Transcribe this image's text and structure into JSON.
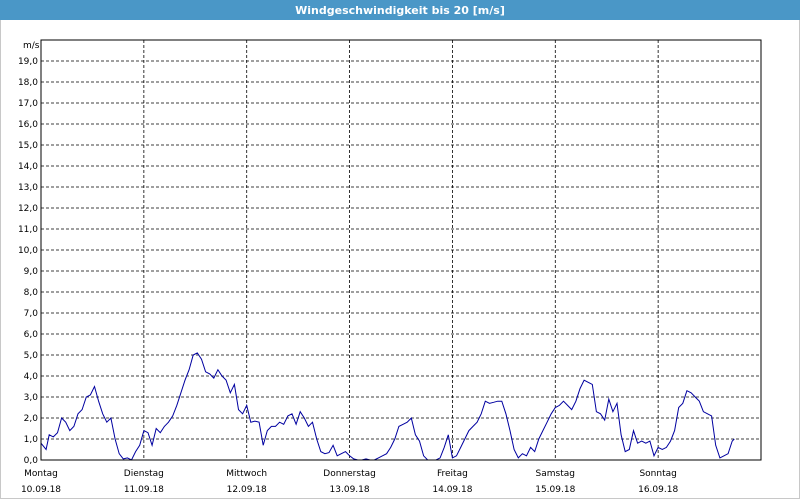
{
  "window": {
    "title": "Windgeschwindigkeit bis 20 [m/s]"
  },
  "chart_data": {
    "type": "line",
    "title": "Windgeschwindigkeit bis 20 [m/s]",
    "ylabel": "m/s",
    "xlabel": "",
    "ylim": [
      0,
      20
    ],
    "xlim": [
      0,
      7
    ],
    "grid": true,
    "line_color": "#0000a0",
    "y_ticks": [
      "0,0",
      "1,0",
      "2,0",
      "3,0",
      "4,0",
      "5,0",
      "6,0",
      "7,0",
      "8,0",
      "9,0",
      "10,0",
      "11,0",
      "12,0",
      "13,0",
      "14,0",
      "15,0",
      "16,0",
      "17,0",
      "18,0",
      "19,0"
    ],
    "x_ticks": [
      {
        "day": "Montag",
        "date": "10.09.18"
      },
      {
        "day": "Dienstag",
        "date": "11.09.18"
      },
      {
        "day": "Mittwoch",
        "date": "12.09.18"
      },
      {
        "day": "Donnerstag",
        "date": "13.09.18"
      },
      {
        "day": "Freitag",
        "date": "14.09.18"
      },
      {
        "day": "Samstag",
        "date": "15.09.18"
      },
      {
        "day": "Sonntag",
        "date": "16.09.18"
      }
    ],
    "series": [
      {
        "values": [
          [
            0.0,
            0.8
          ],
          [
            0.05,
            0.5
          ],
          [
            0.08,
            1.2
          ],
          [
            0.12,
            1.1
          ],
          [
            0.16,
            1.3
          ],
          [
            0.2,
            2.0
          ],
          [
            0.24,
            1.8
          ],
          [
            0.28,
            1.4
          ],
          [
            0.32,
            1.6
          ],
          [
            0.36,
            2.2
          ],
          [
            0.4,
            2.4
          ],
          [
            0.44,
            3.0
          ],
          [
            0.48,
            3.1
          ],
          [
            0.52,
            3.5
          ],
          [
            0.56,
            2.8
          ],
          [
            0.6,
            2.2
          ],
          [
            0.64,
            1.8
          ],
          [
            0.68,
            2.0
          ],
          [
            0.72,
            1.0
          ],
          [
            0.76,
            0.3
          ],
          [
            0.8,
            0.05
          ],
          [
            0.84,
            0.1
          ],
          [
            0.88,
            0.0
          ],
          [
            0.92,
            0.4
          ],
          [
            0.96,
            0.7
          ],
          [
            1.0,
            1.4
          ],
          [
            1.04,
            1.3
          ],
          [
            1.08,
            0.7
          ],
          [
            1.12,
            1.5
          ],
          [
            1.16,
            1.3
          ],
          [
            1.2,
            1.6
          ],
          [
            1.24,
            1.8
          ],
          [
            1.28,
            2.1
          ],
          [
            1.32,
            2.6
          ],
          [
            1.36,
            3.2
          ],
          [
            1.4,
            3.8
          ],
          [
            1.44,
            4.3
          ],
          [
            1.48,
            5.0
          ],
          [
            1.52,
            5.1
          ],
          [
            1.56,
            4.8
          ],
          [
            1.6,
            4.2
          ],
          [
            1.64,
            4.1
          ],
          [
            1.68,
            3.9
          ],
          [
            1.72,
            4.3
          ],
          [
            1.76,
            4.0
          ],
          [
            1.8,
            3.8
          ],
          [
            1.84,
            3.2
          ],
          [
            1.88,
            3.6
          ],
          [
            1.92,
            2.4
          ],
          [
            1.96,
            2.2
          ],
          [
            2.0,
            2.6
          ],
          [
            2.04,
            1.8
          ],
          [
            2.08,
            1.85
          ],
          [
            2.12,
            1.8
          ],
          [
            2.16,
            0.7
          ],
          [
            2.2,
            1.4
          ],
          [
            2.24,
            1.6
          ],
          [
            2.28,
            1.6
          ],
          [
            2.32,
            1.8
          ],
          [
            2.36,
            1.7
          ],
          [
            2.4,
            2.1
          ],
          [
            2.44,
            2.2
          ],
          [
            2.48,
            1.7
          ],
          [
            2.52,
            2.3
          ],
          [
            2.56,
            2.0
          ],
          [
            2.6,
            1.6
          ],
          [
            2.64,
            1.8
          ],
          [
            2.68,
            1.0
          ],
          [
            2.72,
            0.4
          ],
          [
            2.76,
            0.3
          ],
          [
            2.8,
            0.35
          ],
          [
            2.84,
            0.7
          ],
          [
            2.88,
            0.2
          ],
          [
            2.92,
            0.3
          ],
          [
            2.96,
            0.4
          ],
          [
            3.0,
            0.2
          ],
          [
            3.04,
            0.05
          ],
          [
            3.08,
            0.0
          ],
          [
            3.12,
            0.0
          ],
          [
            3.16,
            0.05
          ],
          [
            3.2,
            0.0
          ],
          [
            3.24,
            0.0
          ],
          [
            3.28,
            0.1
          ],
          [
            3.32,
            0.2
          ],
          [
            3.36,
            0.3
          ],
          [
            3.4,
            0.6
          ],
          [
            3.44,
            1.0
          ],
          [
            3.48,
            1.6
          ],
          [
            3.52,
            1.7
          ],
          [
            3.56,
            1.8
          ],
          [
            3.6,
            2.0
          ],
          [
            3.64,
            1.2
          ],
          [
            3.68,
            0.9
          ],
          [
            3.72,
            0.2
          ],
          [
            3.76,
            0.0
          ],
          [
            3.8,
            0.0
          ],
          [
            3.84,
            0.0
          ],
          [
            3.88,
            0.1
          ],
          [
            3.92,
            0.6
          ],
          [
            3.96,
            1.2
          ],
          [
            4.0,
            0.1
          ],
          [
            4.04,
            0.2
          ],
          [
            4.08,
            0.6
          ],
          [
            4.12,
            1.0
          ],
          [
            4.16,
            1.4
          ],
          [
            4.2,
            1.6
          ],
          [
            4.24,
            1.8
          ],
          [
            4.28,
            2.2
          ],
          [
            4.32,
            2.8
          ],
          [
            4.36,
            2.7
          ],
          [
            4.4,
            2.75
          ],
          [
            4.44,
            2.8
          ],
          [
            4.48,
            2.8
          ],
          [
            4.52,
            2.2
          ],
          [
            4.56,
            1.4
          ],
          [
            4.6,
            0.5
          ],
          [
            4.64,
            0.1
          ],
          [
            4.68,
            0.3
          ],
          [
            4.72,
            0.2
          ],
          [
            4.76,
            0.6
          ],
          [
            4.8,
            0.4
          ],
          [
            4.84,
            1.0
          ],
          [
            4.88,
            1.4
          ],
          [
            4.92,
            1.8
          ],
          [
            4.96,
            2.2
          ],
          [
            5.0,
            2.5
          ],
          [
            5.04,
            2.6
          ],
          [
            5.08,
            2.8
          ],
          [
            5.12,
            2.6
          ],
          [
            5.16,
            2.4
          ],
          [
            5.2,
            2.8
          ],
          [
            5.24,
            3.4
          ],
          [
            5.28,
            3.8
          ],
          [
            5.32,
            3.7
          ],
          [
            5.36,
            3.6
          ],
          [
            5.4,
            2.3
          ],
          [
            5.44,
            2.2
          ],
          [
            5.48,
            1.9
          ],
          [
            5.52,
            2.9
          ],
          [
            5.56,
            2.3
          ],
          [
            5.6,
            2.7
          ],
          [
            5.64,
            1.2
          ],
          [
            5.68,
            0.4
          ],
          [
            5.72,
            0.5
          ],
          [
            5.76,
            1.4
          ],
          [
            5.8,
            0.8
          ],
          [
            5.84,
            0.9
          ],
          [
            5.88,
            0.8
          ],
          [
            5.92,
            0.9
          ],
          [
            5.96,
            0.2
          ],
          [
            6.0,
            0.6
          ],
          [
            6.04,
            0.5
          ],
          [
            6.08,
            0.6
          ],
          [
            6.12,
            0.9
          ],
          [
            6.16,
            1.4
          ],
          [
            6.2,
            2.5
          ],
          [
            6.24,
            2.7
          ],
          [
            6.28,
            3.3
          ],
          [
            6.32,
            3.2
          ],
          [
            6.36,
            3.0
          ],
          [
            6.4,
            2.8
          ],
          [
            6.44,
            2.3
          ],
          [
            6.48,
            2.2
          ],
          [
            6.52,
            2.1
          ],
          [
            6.56,
            0.7
          ],
          [
            6.6,
            0.1
          ],
          [
            6.64,
            0.2
          ],
          [
            6.68,
            0.3
          ],
          [
            6.72,
            0.9
          ],
          [
            6.74,
            1.0
          ]
        ]
      }
    ]
  }
}
